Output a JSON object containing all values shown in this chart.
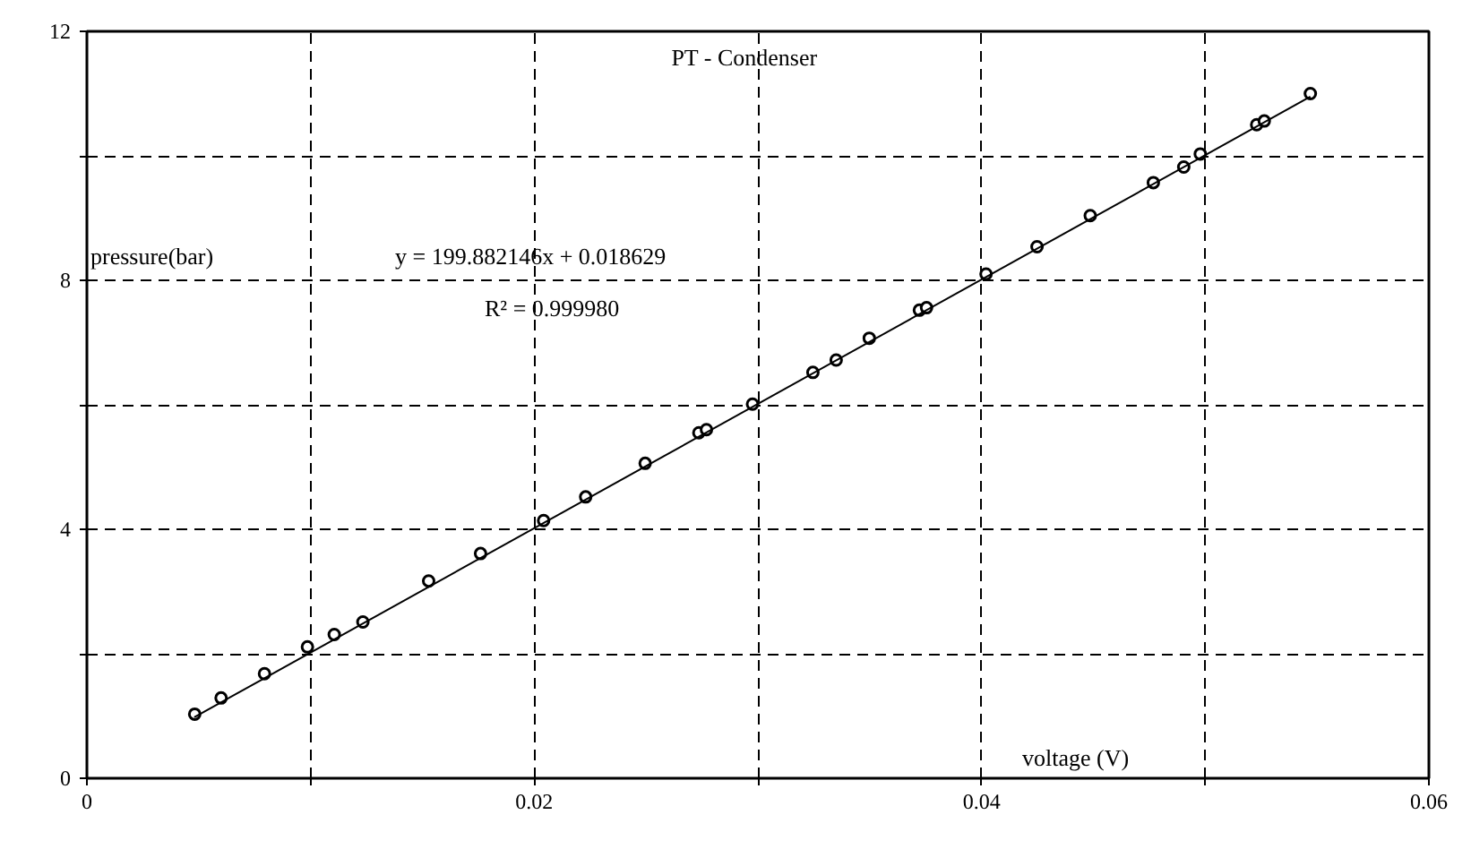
{
  "chart_data": {
    "type": "scatter",
    "title": "PT - Condenser",
    "xlabel": "voltage (V)",
    "ylabel": "pressure(bar)",
    "annotations": [
      "y = 199.882146x + 0.018629",
      "R² = 0.999980"
    ],
    "xlim": [
      0,
      0.06
    ],
    "ylim": [
      0,
      12
    ],
    "xticks": [
      0,
      {
        "value": 0.01,
        "label": null
      },
      0.02,
      {
        "value": 0.03,
        "label": null
      },
      0.04,
      {
        "value": 0.05,
        "label": null
      },
      0.06
    ],
    "yticks": [
      0,
      {
        "value": 2,
        "label": null
      },
      4,
      {
        "value": 6,
        "label": null
      },
      8,
      {
        "value": 10,
        "label": null
      },
      12
    ],
    "grid": true,
    "series": [
      {
        "marker": "circle",
        "color": "#000000",
        "x": [
          0.00482,
          0.006,
          0.00794,
          0.00986,
          0.01106,
          0.01234,
          0.01528,
          0.0176,
          0.02042,
          0.0223,
          0.02496,
          0.02736,
          0.0277,
          0.02976,
          0.03246,
          0.0335,
          0.03498,
          0.03722,
          0.03754,
          0.0402,
          0.04248,
          0.04486,
          0.04768,
          0.04904,
          0.04978,
          0.0523,
          0.05264,
          0.0547
        ],
        "values": [
          1.03,
          1.29,
          1.68,
          2.11,
          2.31,
          2.51,
          3.17,
          3.61,
          4.14,
          4.52,
          5.06,
          5.55,
          5.6,
          6.01,
          6.52,
          6.72,
          7.07,
          7.52,
          7.56,
          8.1,
          8.54,
          9.04,
          9.57,
          9.82,
          10.03,
          10.5,
          10.56,
          11.0
        ]
      },
      {
        "type": "line",
        "marker": "none",
        "line_style": "solid",
        "color": "#000000",
        "x": [
          0.0048,
          0.0547
        ],
        "values": [
          0.98,
          10.95
        ]
      }
    ]
  }
}
